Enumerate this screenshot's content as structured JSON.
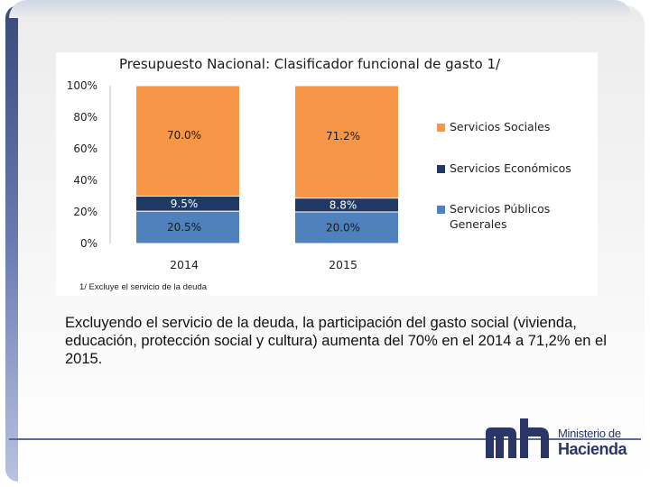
{
  "chart_data": {
    "type": "bar",
    "stacked": true,
    "percent": true,
    "title": "Presupuesto Nacional: Clasificador funcional de gasto 1/",
    "categories": [
      "2014",
      "2015"
    ],
    "series": [
      {
        "name": "Servicios Públicos Generales",
        "values": [
          20.5,
          20.0
        ],
        "labels": [
          "20.5%",
          "20.0%"
        ],
        "color": "#4f81bd"
      },
      {
        "name": "Servicios Económicos",
        "values": [
          9.5,
          8.8
        ],
        "labels": [
          "9.5%",
          "8.8%"
        ],
        "color": "#1f3864"
      },
      {
        "name": "Servicios Sociales",
        "values": [
          70.0,
          71.2
        ],
        "labels": [
          "70.0%",
          "71.2%"
        ],
        "color": "#f79646"
      }
    ],
    "y_ticks": [
      "0%",
      "20%",
      "40%",
      "60%",
      "80%",
      "100%"
    ],
    "ylim": [
      0,
      100
    ],
    "legend_position": "right"
  },
  "footnote": "1/ Excluye el servicio de la deuda",
  "summary": "Excluyendo el servicio de la deuda, la participación del gasto social (vivienda, educación, protección social y cultura)  aumenta del 70% en el 2014 a 71,2% en el 2015.",
  "logo": {
    "line1": "Ministerio de",
    "line2": "Hacienda"
  },
  "colors": {
    "accent": "#2a3568"
  }
}
